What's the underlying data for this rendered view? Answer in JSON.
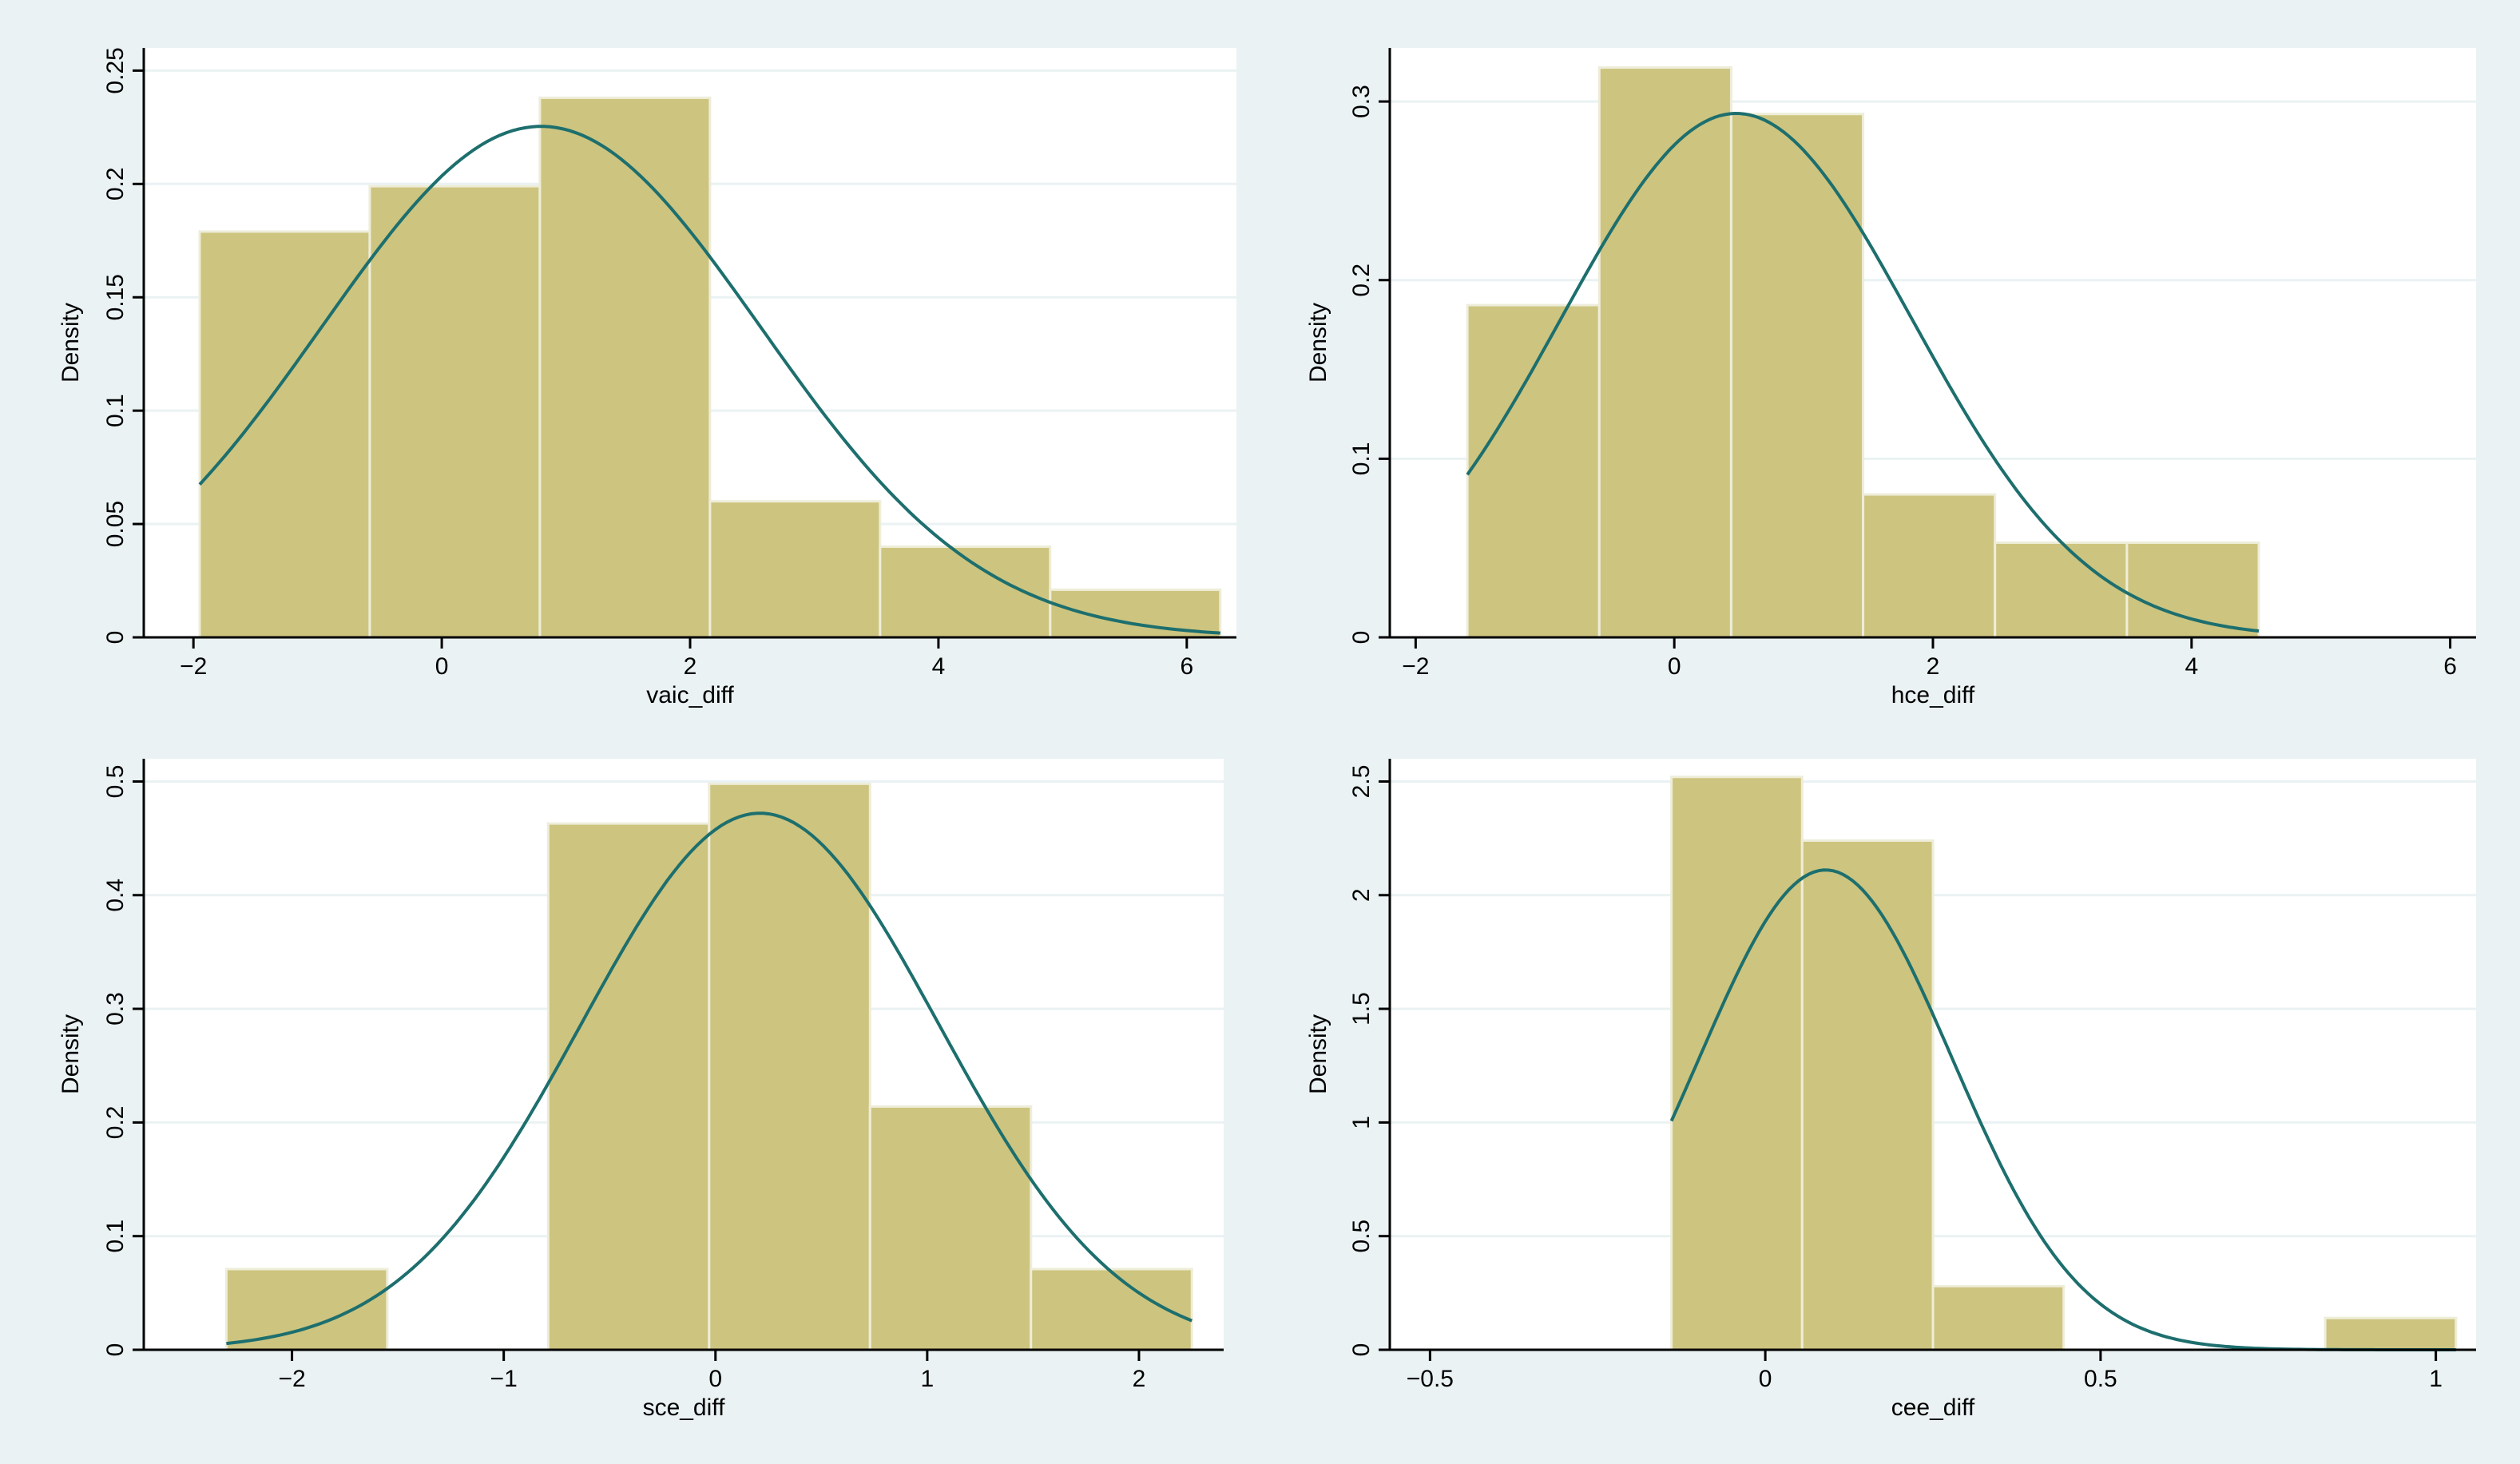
{
  "colors": {
    "background": "#eaf2f3",
    "plot": "#ffffff",
    "bar": "#cdc47f",
    "curve": "#1d6f6e"
  },
  "chart_data": [
    {
      "type": "histogram",
      "xlabel": "vaic_diff",
      "ylabel": "Density",
      "xlim": [
        -2.4,
        6.4
      ],
      "ylim": [
        0,
        0.26
      ],
      "xticks": [
        -2,
        0,
        2,
        4,
        6
      ],
      "xtick_labels": [
        "−2",
        "0",
        "2",
        "4",
        "6"
      ],
      "yticks": [
        0,
        0.05,
        0.1,
        0.15,
        0.2,
        0.25
      ],
      "ytick_labels": [
        "0",
        "0.05",
        "0.1",
        "0.15",
        "0.2",
        "0.25"
      ],
      "bins": [
        {
          "x0": -1.95,
          "x1": -0.58,
          "density": 0.179
        },
        {
          "x0": -0.58,
          "x1": 0.79,
          "density": 0.199
        },
        {
          "x0": 0.79,
          "x1": 2.16,
          "density": 0.238
        },
        {
          "x0": 2.16,
          "x1": 3.53,
          "density": 0.06
        },
        {
          "x0": 3.53,
          "x1": 4.9,
          "density": 0.04
        },
        {
          "x0": 4.9,
          "x1": 6.27,
          "density": 0.021
        }
      ],
      "normal_curve": {
        "mean": 0.8,
        "sd": 1.77,
        "x_range": [
          -1.95,
          6.27
        ]
      }
    },
    {
      "type": "histogram",
      "xlabel": "hce_diff",
      "ylabel": "Density",
      "xlim": [
        -2.2,
        6.2
      ],
      "ylim": [
        0,
        0.33
      ],
      "xticks": [
        -2,
        0,
        2,
        4,
        6
      ],
      "xtick_labels": [
        "−2",
        "0",
        "2",
        "4",
        "6"
      ],
      "yticks": [
        0,
        0.1,
        0.2,
        0.3
      ],
      "ytick_labels": [
        "0",
        "0.1",
        "0.2",
        "0.3"
      ],
      "bins": [
        {
          "x0": -1.6,
          "x1": -0.58,
          "density": 0.186
        },
        {
          "x0": -0.58,
          "x1": 0.44,
          "density": 0.319
        },
        {
          "x0": 0.44,
          "x1": 1.46,
          "density": 0.293
        },
        {
          "x0": 1.46,
          "x1": 2.48,
          "density": 0.08
        },
        {
          "x0": 2.48,
          "x1": 3.5,
          "density": 0.053
        },
        {
          "x0": 3.5,
          "x1": 4.52,
          "density": 0.053
        }
      ],
      "normal_curve": {
        "mean": 0.48,
        "sd": 1.36,
        "x_range": [
          -1.6,
          4.52
        ]
      }
    },
    {
      "type": "histogram",
      "xlabel": "sce_diff",
      "ylabel": "Density",
      "xlim": [
        -2.7,
        2.4
      ],
      "ylim": [
        0,
        0.52
      ],
      "xticks": [
        -2,
        -1,
        0,
        1,
        2
      ],
      "xtick_labels": [
        "−2",
        "−1",
        "0",
        "1",
        "2"
      ],
      "yticks": [
        0,
        0.1,
        0.2,
        0.3,
        0.4,
        0.5
      ],
      "ytick_labels": [
        "0",
        "0.1",
        "0.2",
        "0.3",
        "0.4",
        "0.5"
      ],
      "bins": [
        {
          "x0": -2.31,
          "x1": -1.55,
          "density": 0.071
        },
        {
          "x0": -1.55,
          "x1": -0.79,
          "density": 0
        },
        {
          "x0": -0.79,
          "x1": -0.03,
          "density": 0.463
        },
        {
          "x0": -0.03,
          "x1": 0.73,
          "density": 0.498
        },
        {
          "x0": 0.73,
          "x1": 1.49,
          "density": 0.214
        },
        {
          "x0": 1.49,
          "x1": 2.25,
          "density": 0.071
        }
      ],
      "normal_curve": {
        "mean": 0.21,
        "sd": 0.845,
        "x_range": [
          -2.31,
          2.25
        ]
      }
    },
    {
      "type": "histogram",
      "xlabel": "cee_diff",
      "ylabel": "Density",
      "xlim": [
        -0.56,
        1.06
      ],
      "ylim": [
        0,
        2.6
      ],
      "xticks": [
        -0.5,
        0,
        0.5,
        1
      ],
      "xtick_labels": [
        "−0.5",
        "0",
        "0.5",
        "1"
      ],
      "yticks": [
        0,
        0.5,
        1,
        1.5,
        2,
        2.5
      ],
      "ytick_labels": [
        "0",
        "0.5",
        "1",
        "1.5",
        "2",
        "2.5"
      ],
      "bins": [
        {
          "x0": -0.14,
          "x1": 0.055,
          "density": 2.52
        },
        {
          "x0": 0.055,
          "x1": 0.25,
          "density": 2.24
        },
        {
          "x0": 0.25,
          "x1": 0.445,
          "density": 0.28
        },
        {
          "x0": 0.445,
          "x1": 0.64,
          "density": 0
        },
        {
          "x0": 0.64,
          "x1": 0.835,
          "density": 0
        },
        {
          "x0": 0.835,
          "x1": 1.03,
          "density": 0.14
        }
      ],
      "normal_curve": {
        "mean": 0.09,
        "sd": 0.189,
        "x_range": [
          -0.14,
          1.03
        ]
      }
    }
  ]
}
